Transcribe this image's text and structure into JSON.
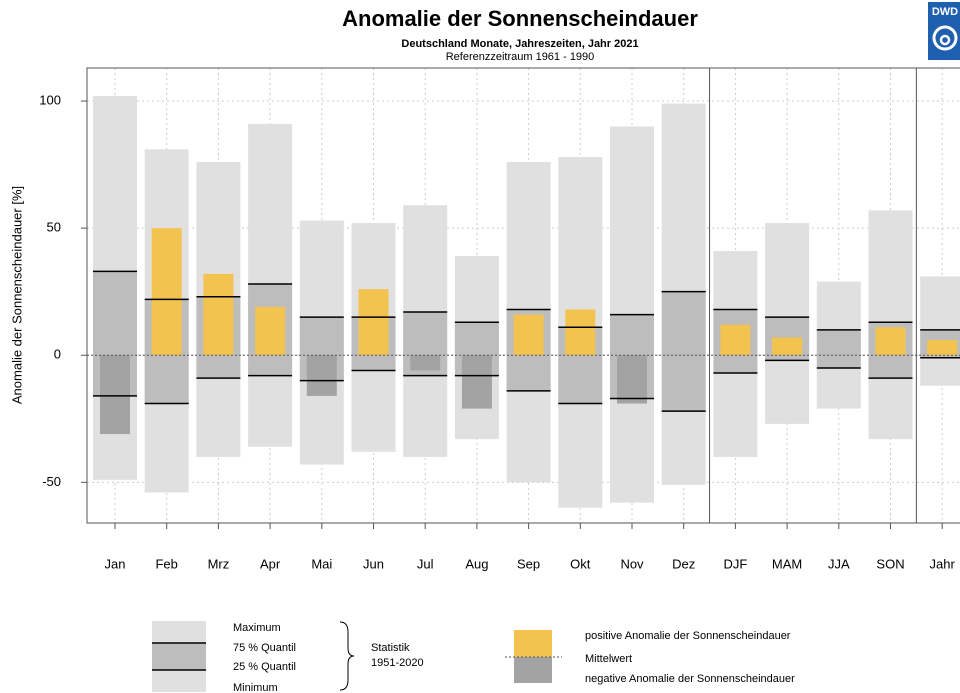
{
  "chart_data": {
    "type": "range_bar",
    "title": "Anomalie der Sonnenscheindauer",
    "subtitle": "Deutschland Monate, Jahreszeiten, Jahr 2021",
    "note": "Referenzzeitraum 1961 - 1990",
    "y_label": "Anomalie der Sonnenscheindauer [%]",
    "logo": "DWD",
    "categories": [
      "Jan",
      "Feb",
      "Mrz",
      "Apr",
      "Mai",
      "Jun",
      "Jul",
      "Aug",
      "Sep",
      "Okt",
      "Nov",
      "Dez",
      "DJF",
      "MAM",
      "JJA",
      "SON",
      "Jahr"
    ],
    "series": [
      {
        "name": "Maximum",
        "values": [
          102,
          81,
          76,
          91,
          53,
          52,
          59,
          39,
          76,
          78,
          90,
          99,
          41,
          52,
          29,
          57,
          31
        ]
      },
      {
        "name": "75 % Quantil",
        "values": [
          33,
          22,
          23,
          28,
          15,
          15,
          17,
          13,
          18,
          11,
          16,
          25,
          18,
          15,
          10,
          13,
          10
        ]
      },
      {
        "name": "25 % Quantil",
        "values": [
          -16,
          -19,
          -9,
          -8,
          -10,
          -6,
          -8,
          -8,
          -14,
          -19,
          -17,
          -22,
          -7,
          -2,
          -5,
          -9,
          -1
        ]
      },
      {
        "name": "Minimum",
        "values": [
          -49,
          -54,
          -40,
          -36,
          -43,
          -38,
          -40,
          -33,
          -50,
          -60,
          -58,
          -51,
          -40,
          -27,
          -21,
          -33,
          -12
        ]
      }
    ],
    "values": [
      -31,
      50,
      32,
      19,
      -16,
      26,
      -6,
      -21,
      16,
      18,
      -19,
      null,
      12,
      7,
      null,
      11,
      6
    ],
    "colors": {
      "range": "#e0e0e0",
      "quartile": "#bdbdbd",
      "positive": "#f2c44f",
      "negative": "#a3a3a3"
    },
    "legend": {
      "statistic": [
        "Statistik",
        "1951-2020"
      ],
      "positive": "positive Anomalie der Sonnenscheindauer",
      "mean": "Mittelwert",
      "negative": "negative Anomalie der Sonnenscheindauer"
    },
    "ylim": [
      -66,
      113
    ],
    "yticks": [
      -50,
      0,
      50,
      100
    ],
    "grid": true
  }
}
